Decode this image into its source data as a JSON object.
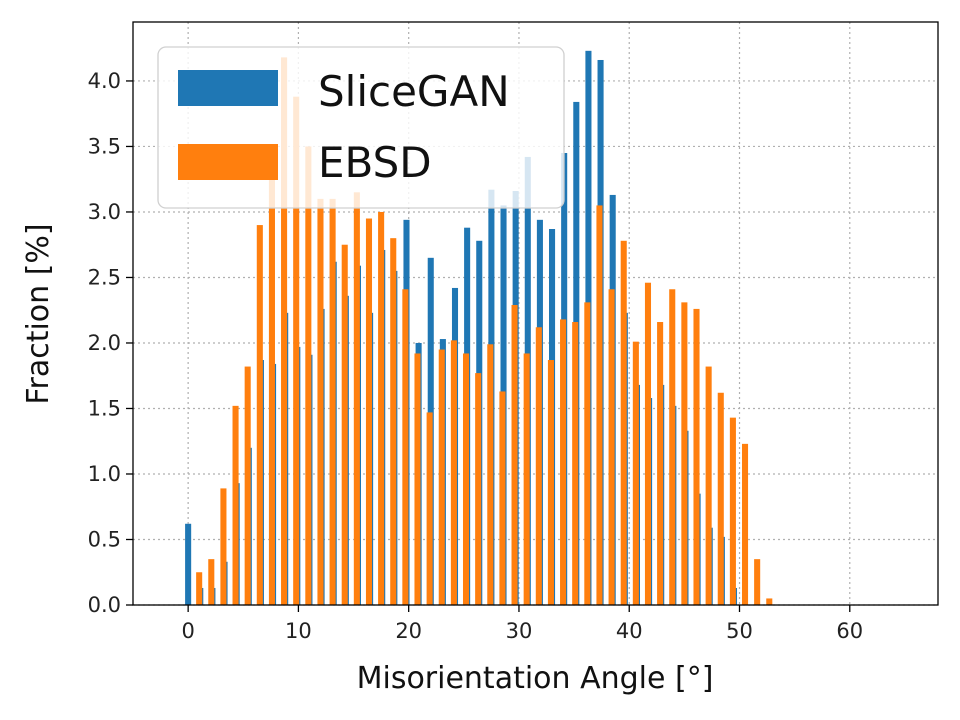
{
  "chart_data": {
    "type": "bar",
    "xlabel": "Misorientation Angle [$^{\\circ}$]",
    "xlabel_display": "Misorientation Angle [°]",
    "ylabel": "Fraction [%]",
    "xlim": [
      -5,
      68
    ],
    "ylim": [
      0,
      4.45
    ],
    "x_ticks": [
      0,
      10,
      20,
      30,
      40,
      50,
      60
    ],
    "y_ticks": [
      0.0,
      0.5,
      1.0,
      1.5,
      2.0,
      2.5,
      3.0,
      3.5,
      4.0
    ],
    "y_tick_labels": [
      "0.0",
      "0.5",
      "1.0",
      "1.5",
      "2.0",
      "2.5",
      "3.0",
      "3.5",
      "4.0"
    ],
    "grid": true,
    "legend_position": "top-left",
    "bar_width": 0.55,
    "series": [
      {
        "name": "SliceGAN",
        "color": "#1f77b4",
        "x": [
          0,
          1.1,
          2.2,
          3.3,
          4.4,
          5.5,
          6.6,
          7.7,
          8.8,
          9.9,
          11.0,
          12.1,
          13.2,
          14.3,
          15.4,
          16.5,
          17.6,
          18.7,
          19.8,
          20.9,
          22.0,
          23.1,
          24.2,
          25.3,
          26.4,
          27.5,
          28.6,
          29.7,
          30.8,
          31.9,
          33.0,
          34.1,
          35.2,
          36.3,
          37.4,
          38.5,
          39.6,
          40.7,
          41.8,
          42.9,
          44.0,
          45.1,
          46.2,
          47.3,
          48.4,
          49.5,
          50.6,
          51.7,
          52.8,
          53.9,
          55.0,
          56.1,
          57.2,
          58.3,
          59.4,
          60.5
        ],
        "values": [
          0.62,
          0.13,
          0.13,
          0.33,
          0.93,
          1.2,
          1.87,
          1.84,
          2.23,
          1.97,
          1.91,
          2.26,
          2.62,
          2.36,
          2.59,
          2.23,
          2.71,
          2.55,
          2.94,
          2.0,
          2.65,
          2.03,
          2.42,
          2.88,
          2.78,
          3.17,
          3.05,
          3.16,
          3.42,
          2.94,
          2.87,
          3.45,
          3.84,
          4.23,
          4.16,
          3.13,
          2.23,
          1.68,
          1.58,
          1.68,
          1.52,
          1.33,
          0.85,
          0.59,
          0.52,
          0.13,
          0.0,
          0.0,
          0.0,
          0.0,
          0.0,
          0.0,
          0.0,
          0.0,
          0.0,
          0.0
        ]
      },
      {
        "name": "EBSD",
        "color": "#ff7f0e",
        "x": [
          1.0,
          2.1,
          3.2,
          4.3,
          5.4,
          6.5,
          7.6,
          8.7,
          9.8,
          10.9,
          12.0,
          13.1,
          14.2,
          15.3,
          16.4,
          17.5,
          18.6,
          19.7,
          20.8,
          21.9,
          23.0,
          24.1,
          25.2,
          26.3,
          27.4,
          28.5,
          29.6,
          30.7,
          31.8,
          32.9,
          34.0,
          35.1,
          36.2,
          37.3,
          38.4,
          39.5,
          40.6,
          41.7,
          42.8,
          43.9,
          45.0,
          46.1,
          47.2,
          48.3,
          49.4,
          50.5,
          51.6,
          52.7,
          53.8,
          54.9,
          56.0,
          57.1,
          58.2,
          59.3,
          60.4,
          61.5,
          62.6
        ],
        "values": [
          0.25,
          0.35,
          0.89,
          1.52,
          1.82,
          2.9,
          3.49,
          4.18,
          3.88,
          3.5,
          3.1,
          3.1,
          2.75,
          3.15,
          2.95,
          3.0,
          2.8,
          2.41,
          1.92,
          1.47,
          1.95,
          2.02,
          1.92,
          1.77,
          1.99,
          1.63,
          2.29,
          1.92,
          2.12,
          1.87,
          2.18,
          2.16,
          2.31,
          3.05,
          2.41,
          2.78,
          2.01,
          2.46,
          2.16,
          2.41,
          2.31,
          2.26,
          1.82,
          1.62,
          1.43,
          1.23,
          0.35,
          0.05,
          0.0,
          0.0,
          0.0,
          0.0,
          0.0,
          0.0,
          0.0,
          0.0,
          0.0
        ]
      }
    ]
  }
}
